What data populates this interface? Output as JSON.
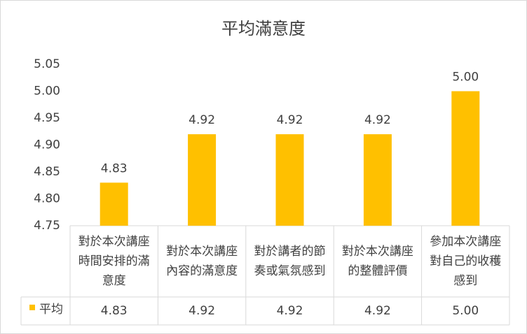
{
  "chart_data": {
    "type": "bar",
    "title": "平均滿意度",
    "categories": [
      "對於本次講座時間安排的滿意度",
      "對於本次講座內容的滿意度",
      "對於講者的節奏或氣氛感到",
      "對於本次講座的整體評價",
      "參加本次講座對自己的收穫感到"
    ],
    "series": [
      {
        "name": "平均",
        "color": "#ffc000",
        "values": [
          4.83,
          4.92,
          4.92,
          4.92,
          5.0
        ],
        "value_labels": [
          "4.83",
          "4.92",
          "4.92",
          "4.92",
          "5.00"
        ]
      }
    ],
    "ylim": [
      4.75,
      5.05
    ],
    "yticks": [
      4.75,
      {
        "value": 4.8,
        "label": "4.80"
      },
      4.85,
      {
        "value": 4.9,
        "label": "4.90"
      },
      4.95,
      {
        "value": 5.0,
        "label": "5.00"
      },
      5.05
    ],
    "grid": false,
    "data_table": true
  }
}
